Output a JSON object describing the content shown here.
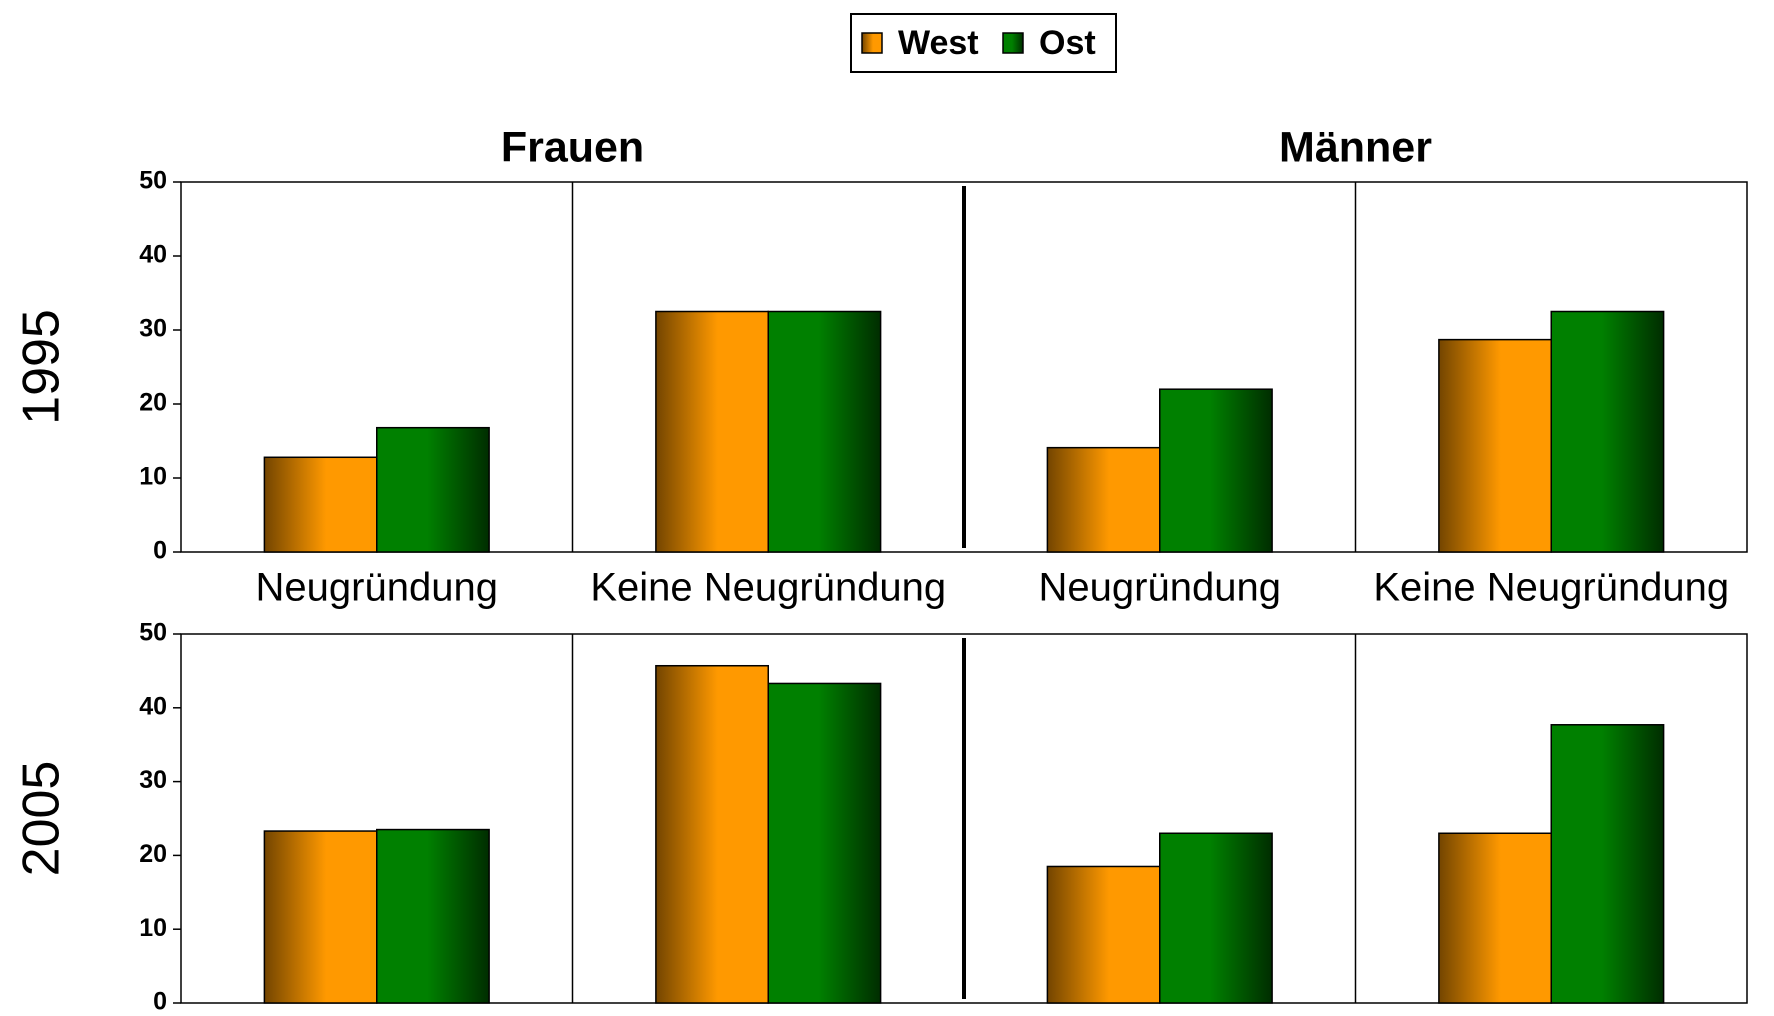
{
  "chart_data": [
    {
      "type": "bar",
      "title": "1995",
      "group_labels": [
        "Frauen",
        "Männer"
      ],
      "categories": [
        "Neugründung",
        "Keine Neugründung",
        "Neugründung",
        "Keine Neugründung"
      ],
      "series": [
        {
          "name": "West",
          "color": "#ff9900",
          "values": [
            12.8,
            32.5,
            14.1,
            28.7
          ]
        },
        {
          "name": "Ost",
          "color": "#008000",
          "values": [
            16.8,
            32.5,
            22,
            32.5
          ]
        }
      ],
      "ylim": [
        0,
        50
      ],
      "yticks": [
        0,
        10,
        20,
        30,
        40,
        50
      ]
    },
    {
      "type": "bar",
      "title": "2005",
      "series": [
        {
          "color": "#ff9900",
          "values": [
            23.3,
            45.7,
            18.5,
            23
          ]
        },
        {
          "color": "#008000",
          "values": [
            23.5,
            43.3,
            23,
            37.7
          ]
        }
      ],
      "ylim": [
        0,
        50
      ],
      "yticks": [
        0,
        10,
        20,
        30,
        40,
        50
      ]
    }
  ]
}
